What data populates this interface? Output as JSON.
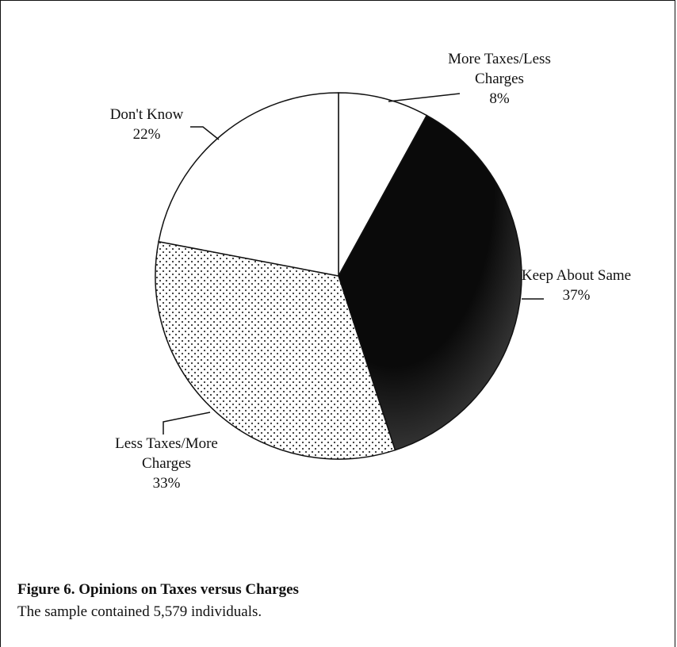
{
  "chart_data": {
    "type": "pie",
    "categories": [
      "More Taxes/Less Charges",
      "Keep About Same",
      "Less Taxes/More Charges",
      "Don't Know"
    ],
    "values": [
      8,
      37,
      33,
      22
    ],
    "value_labels": [
      "8%",
      "37%",
      "33%",
      "22%"
    ],
    "fills": [
      "white",
      "black",
      "dots",
      "white"
    ],
    "caption_title": "Figure 6. Opinions on Taxes versus Charges",
    "caption_text": "The sample contained 5,579 individuals."
  }
}
